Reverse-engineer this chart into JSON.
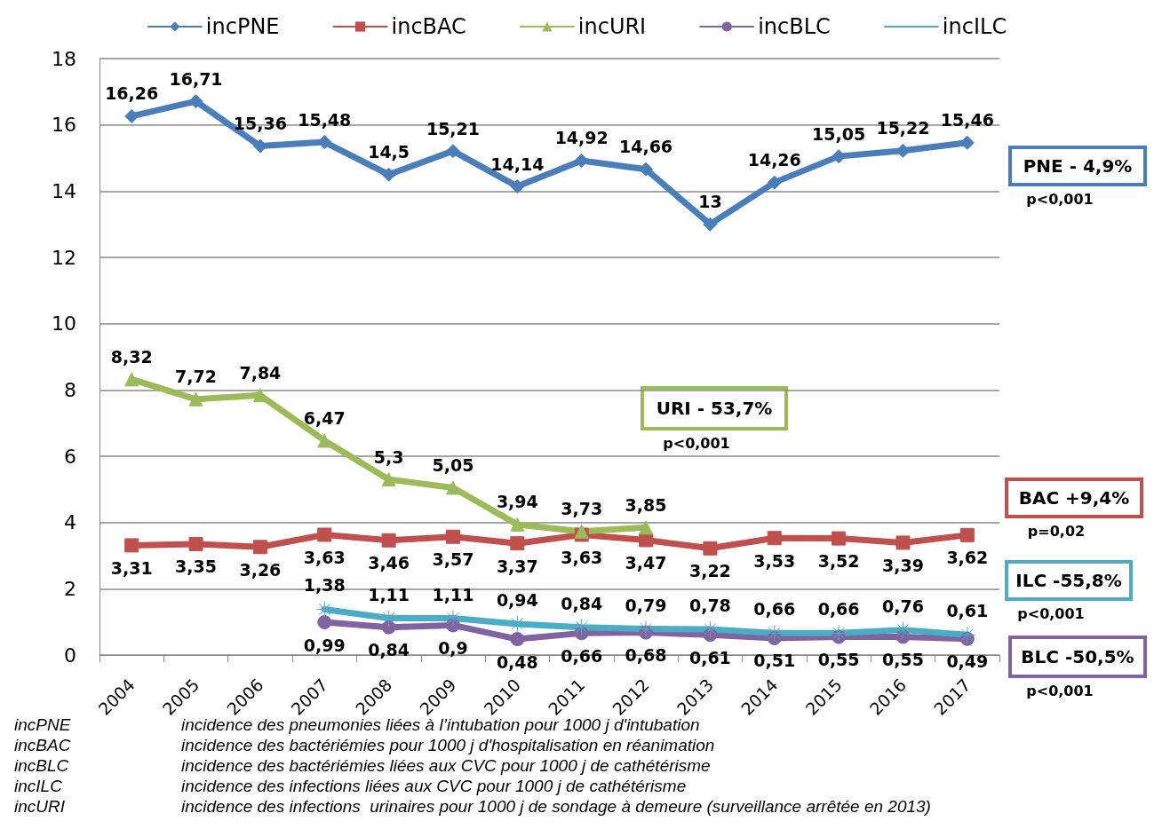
{
  "chart_data": {
    "type": "line",
    "categories": [
      "2004",
      "2005",
      "2006",
      "2007",
      "2008",
      "2009",
      "2010",
      "2011",
      "2012",
      "2013",
      "2014",
      "2015",
      "2016",
      "2017"
    ],
    "ylim": [
      0,
      18
    ],
    "yticks": [
      0,
      2,
      4,
      6,
      8,
      10,
      12,
      14,
      16,
      18
    ],
    "grid": "y",
    "legend": "top",
    "line_style": "solid",
    "series": [
      {
        "name": "incPNE",
        "color": "#4a7ebb",
        "marker": "diamond",
        "values": [
          16.26,
          16.71,
          15.36,
          15.48,
          14.5,
          15.21,
          14.14,
          14.92,
          14.66,
          13,
          14.26,
          15.05,
          15.22,
          15.46
        ],
        "value_labels": [
          "16,26",
          "16,71",
          "15,36",
          "15,48",
          "14,5",
          "15,21",
          "14,14",
          "14,92",
          "14,66",
          "13",
          "14,26",
          "15,05",
          "15,22",
          "15,46"
        ]
      },
      {
        "name": "incBAC",
        "color": "#c0504d",
        "marker": "square",
        "values": [
          3.31,
          3.35,
          3.26,
          3.63,
          3.46,
          3.57,
          3.37,
          3.63,
          3.47,
          3.22,
          3.53,
          3.52,
          3.39,
          3.62
        ],
        "value_labels": [
          "3,31",
          "3,35",
          "3,26",
          "3,63",
          "3,46",
          "3,57",
          "3,37",
          "3,63",
          "3,47",
          "3,22",
          "3,53",
          "3,52",
          "3,39",
          "3,62"
        ]
      },
      {
        "name": "incURI",
        "color": "#9bbb59",
        "marker": "triangle",
        "values": [
          8.32,
          7.72,
          7.84,
          6.47,
          5.3,
          5.05,
          3.94,
          3.73,
          3.85,
          null,
          null,
          null,
          null,
          null
        ],
        "value_labels": [
          "8,32",
          "7,72",
          "7,84",
          "6,47",
          "5,3",
          "5,05",
          "3,94",
          "3,73",
          "3,85",
          null,
          null,
          null,
          null,
          null
        ]
      },
      {
        "name": "incBLC",
        "color": "#8064a2",
        "marker": "circle",
        "values": [
          null,
          null,
          null,
          0.99,
          0.84,
          0.9,
          0.48,
          0.66,
          0.68,
          0.61,
          0.51,
          0.55,
          0.55,
          0.49
        ],
        "value_labels": [
          null,
          null,
          null,
          "0,99",
          "0,84",
          "0,9",
          "0,48",
          "0,66",
          "0,68",
          "0,61",
          "0,51",
          "0,55",
          "0,55",
          "0,49"
        ]
      },
      {
        "name": "incILC",
        "color": "#4bacc6",
        "marker": "cross",
        "values": [
          null,
          null,
          null,
          1.38,
          1.11,
          1.11,
          0.94,
          0.84,
          0.79,
          0.78,
          0.66,
          0.66,
          0.76,
          0.61
        ],
        "value_labels": [
          null,
          null,
          null,
          "1,38",
          "1,11",
          "1,11",
          "0,94",
          "0,84",
          "0,79",
          "0,78",
          "0,66",
          "0,66",
          "0,76",
          "0,61"
        ]
      }
    ],
    "annotations": [
      "PNE - 4,9%",
      "p<0,001",
      "URI - 53,7%",
      "p<0,001",
      "BAC +9,4%",
      "p=0,02",
      "ILC -55,8%",
      "p<0,001",
      "BLC -50,5%",
      "p<0,001",
      "incPNE",
      "incidence des pneumonies liées à l’intubation pour 1000 j d'intubation",
      "incBAC",
      "incidence des bactériémies pour 1000 j d'hospitalisation en réanimation",
      "incBLC",
      "incidence des bactériémies liées aux CVC pour 1000 j de cathétérisme",
      "incILC",
      "incidence des infections liées aux CVC pour 1000 j de cathétérisme",
      "incURI",
      "incidence des infections  urinaires pour 1000 j de sondage à demeure (surveillance arrêtée en 2013)"
    ]
  }
}
